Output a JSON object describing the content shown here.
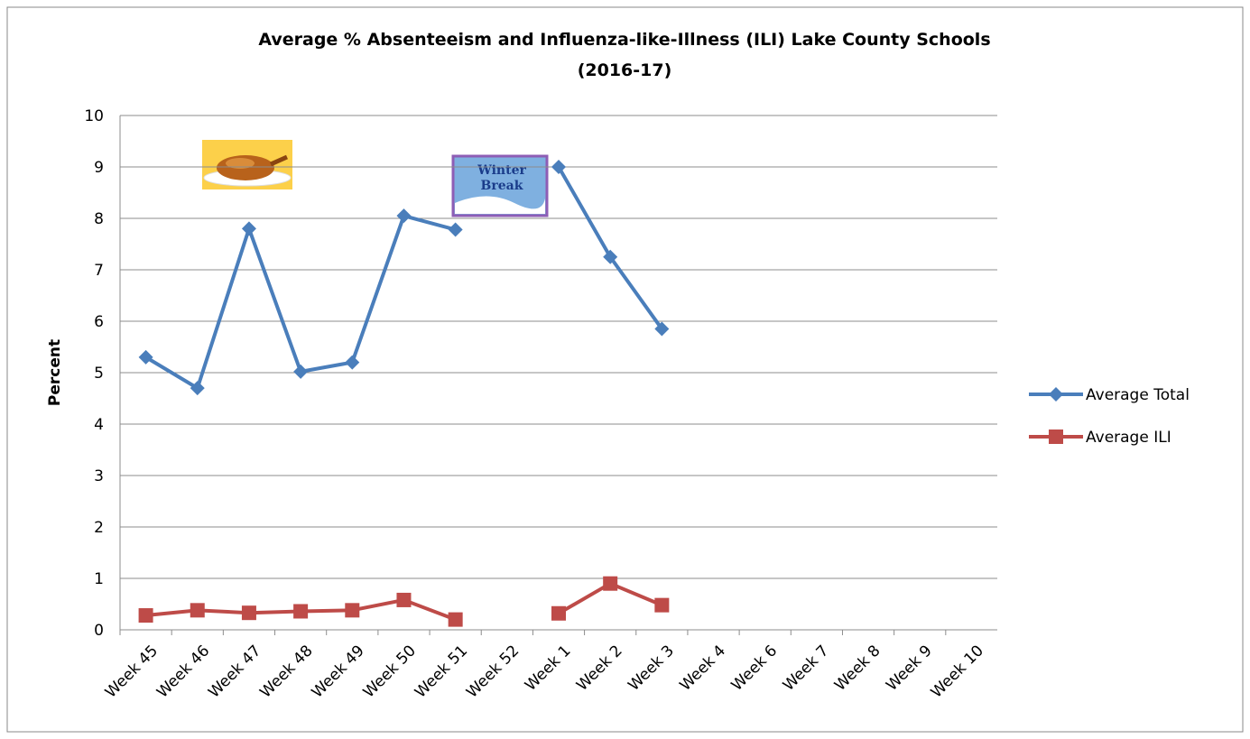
{
  "chart_data": {
    "type": "line",
    "title": [
      "Average % Absenteeism and Influenza-like-Illness (ILI) Lake County Schools",
      "(2016-17)"
    ],
    "y_label": "Percent",
    "categories": [
      "Week 45",
      "Week 46",
      "Week 47",
      "Week 48",
      "Week 49",
      "Week 50",
      "Week 51",
      "Week 52",
      "Week 1",
      "Week 2",
      "Week 3",
      "Week 4",
      "Week 6",
      "Week 7",
      "Week 8",
      "Week 9",
      "Week 10"
    ],
    "series": [
      {
        "name": "Average Total",
        "color": "#4a7ebb",
        "marker": "diamond",
        "values": [
          5.3,
          4.7,
          7.8,
          5.02,
          5.2,
          8.05,
          7.78,
          null,
          9.0,
          7.25,
          5.85,
          null,
          null,
          null,
          null,
          null,
          null
        ]
      },
      {
        "name": "Average ILI",
        "color": "#be4b48",
        "marker": "square",
        "values": [
          0.28,
          0.38,
          0.33,
          0.36,
          0.38,
          0.58,
          0.2,
          null,
          0.32,
          0.9,
          0.48,
          null,
          null,
          null,
          null,
          null,
          null
        ]
      }
    ],
    "ylim": [
      0,
      10
    ],
    "yticks": [
      0,
      1,
      2,
      3,
      4,
      5,
      6,
      7,
      8,
      9,
      10
    ],
    "grid": true,
    "legend": "right",
    "annotations": [
      "Winter",
      "Break"
    ]
  }
}
